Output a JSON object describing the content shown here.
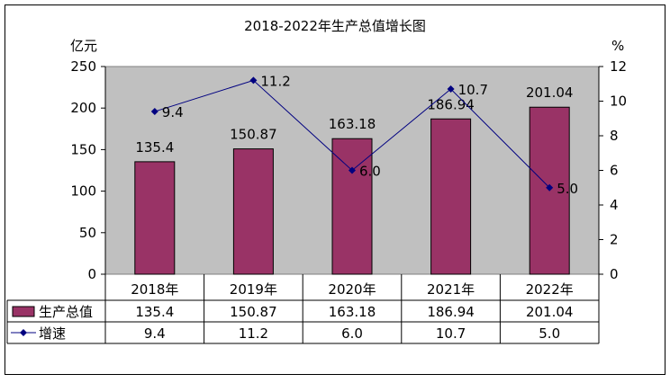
{
  "chart_data": {
    "type": "bar+line",
    "title": "2018-2022年生产总值增长图",
    "categories": [
      "2018年",
      "2019年",
      "2020年",
      "2021年",
      "2022年"
    ],
    "left_axis": {
      "unit": "亿元",
      "range": [
        0,
        250
      ],
      "ticks": [
        "0",
        "50",
        "100",
        "150",
        "200",
        "250"
      ]
    },
    "right_axis": {
      "unit": "%",
      "range": [
        0,
        12
      ],
      "ticks": [
        "0",
        "2",
        "4",
        "6",
        "8",
        "10",
        "12"
      ]
    },
    "series": [
      {
        "name": "生产总值",
        "type": "bar",
        "axis": "left",
        "color": "#993366",
        "values": [
          135.4,
          150.87,
          163.18,
          186.94,
          201.04
        ],
        "labels": [
          "135.4",
          "150.87",
          "163.18",
          "186.94",
          "201.04"
        ]
      },
      {
        "name": "增速",
        "type": "line",
        "axis": "right",
        "color": "#000080",
        "values": [
          9.4,
          11.2,
          6.0,
          10.7,
          5.0
        ],
        "labels": [
          "9.4",
          "11.2",
          "6.0",
          "10.7",
          "5.0"
        ]
      }
    ],
    "plot_background": "#c0c0c0",
    "grid": false,
    "legend": "data-table"
  }
}
